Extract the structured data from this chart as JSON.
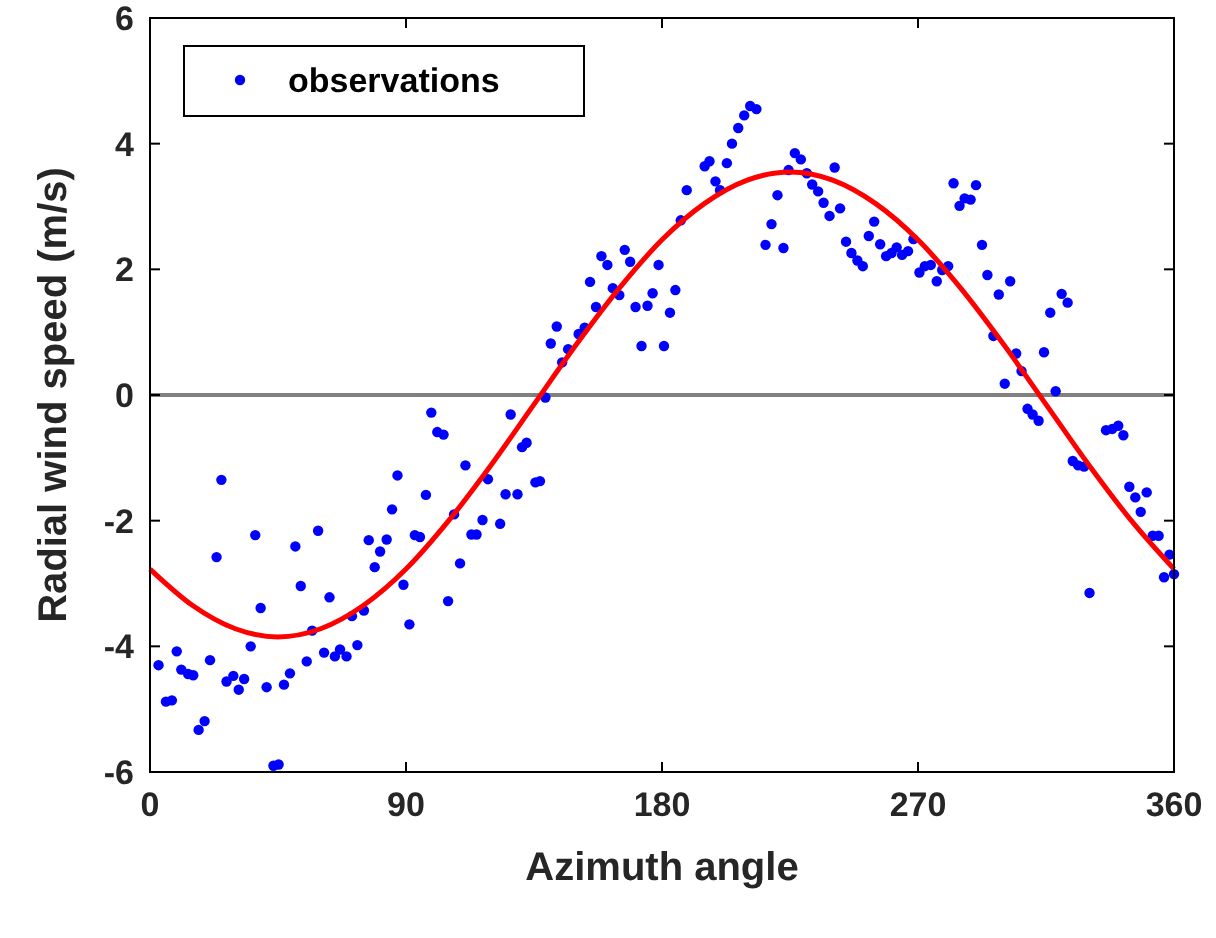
{
  "chart_data": {
    "type": "scatter",
    "xlabel": "Azimuth angle",
    "ylabel": "Radial wind speed (m/s)",
    "xlim": [
      0,
      360
    ],
    "xticks": [
      0,
      90,
      180,
      270,
      360
    ],
    "ylim": [
      -6,
      6
    ],
    "yticks": [
      -6,
      -4,
      -2,
      0,
      2,
      4,
      6
    ],
    "legend": "top left",
    "grid": false,
    "ref_lines": [
      {
        "axis": "y",
        "value": 0,
        "color": "#808080"
      }
    ],
    "series": [
      {
        "name": "observations",
        "marker": "circle",
        "color": "#0000ff",
        "x": [
          3,
          5.6,
          7.7,
          9.4,
          11,
          13.4,
          15.2,
          17.1,
          19.2,
          21.1,
          23.4,
          25.1,
          26.9,
          29.3,
          31.2,
          33.1,
          35.4,
          37,
          38.9,
          41,
          43.4,
          45.2,
          47.1,
          49.2,
          51.1,
          53,
          55.1,
          57,
          59.1,
          61.2,
          63.1,
          65,
          66.8,
          69.1,
          71,
          72.9,
          75.2,
          76.9,
          79,
          80.9,
          83.2,
          85.1,
          87,
          89.1,
          91.2,
          93.1,
          94.9,
          97,
          98.9,
          101,
          103.2,
          104.8,
          106.9,
          109,
          110.9,
          113,
          114.8,
          116.9,
          118.8,
          123.1,
          125,
          126.8,
          129.2,
          130.8,
          132.4,
          135.5,
          137.1,
          139,
          140.9,
          143,
          144.9,
          147,
          150.7,
          152.8,
          154.7,
          156.8,
          158.7,
          160.8,
          162.7,
          165,
          166.9,
          168.8,
          170.7,
          172.8,
          174.9,
          176.7,
          178.8,
          180.7,
          182.8,
          184.7,
          186.6,
          188.7,
          195,
          196.7,
          198.8,
          200.4,
          202.8,
          204.6,
          206.8,
          208.9,
          211,
          213.2,
          216.4,
          218.5,
          220.6,
          222.7,
          224.5,
          226.7,
          228.8,
          230.9,
          232.8,
          234.9,
          236.8,
          238.9,
          240.7,
          242.6,
          244.7,
          246.6,
          248.7,
          250.6,
          252.7,
          254.6,
          256.7,
          258.8,
          260.7,
          262.5,
          264.4,
          266.5,
          268.4,
          270.5,
          272.4,
          274.5,
          276.6,
          278.5,
          280.6,
          282.5,
          284.6,
          286.4,
          288.5,
          290.4,
          292.5,
          294.4,
          296.5,
          298.4,
          300.5,
          302.4,
          304.5,
          306.4,
          308.5,
          310.3,
          312.4,
          314.3,
          316.5,
          318.4,
          320.5,
          322.6,
          324.4,
          326.3,
          328.4,
          330.3,
          336.1,
          338.3,
          340.4,
          342.2,
          344.3,
          346.4,
          348.3,
          350.4,
          352.5,
          354.6,
          356.5,
          358.4,
          360
        ],
        "values": [
          -4.3,
          -4.88,
          -4.86,
          -4.08,
          -4.37,
          -4.44,
          -4.46,
          -5.33,
          -5.19,
          -4.22,
          -2.58,
          -1.35,
          -4.56,
          -4.47,
          -4.69,
          -4.52,
          -4,
          -2.23,
          -3.39,
          -4.65,
          -5.9,
          -5.88,
          -4.61,
          -4.43,
          -2.41,
          -3.04,
          -4.24,
          -3.75,
          -2.16,
          -4.1,
          -3.22,
          -4.16,
          -4.05,
          -4.16,
          -3.52,
          -3.98,
          -3.43,
          -2.31,
          -2.74,
          -2.49,
          -2.3,
          -1.82,
          -1.28,
          -3.02,
          -3.65,
          -2.23,
          -2.26,
          -1.59,
          -0.28,
          -0.59,
          -0.63,
          -3.28,
          -1.9,
          -2.68,
          -1.12,
          -2.22,
          -2.22,
          -1.99,
          -1.34,
          -2.05,
          -1.58,
          -0.31,
          -1.58,
          -0.83,
          -0.76,
          -1.39,
          -1.37,
          -0.04,
          0.82,
          1.09,
          0.52,
          0.73,
          0.97,
          1.07,
          1.8,
          1.4,
          2.21,
          2.07,
          1.7,
          1.59,
          2.31,
          2.12,
          1.4,
          0.78,
          1.42,
          1.62,
          2.07,
          0.78,
          1.31,
          1.67,
          2.78,
          3.26,
          3.64,
          3.72,
          3.4,
          3.26,
          3.69,
          4.0,
          4.25,
          4.45,
          4.6,
          4.55,
          2.39,
          2.72,
          3.18,
          2.34,
          3.58,
          3.85,
          3.75,
          3.53,
          3.35,
          3.24,
          3.06,
          2.85,
          3.62,
          2.97,
          2.44,
          2.26,
          2.14,
          2.05,
          2.53,
          2.76,
          2.4,
          2.21,
          2.26,
          2.35,
          2.23,
          2.29,
          2.48,
          1.95,
          2.05,
          2.07,
          1.81,
          1.99,
          2.05,
          3.37,
          3.01,
          3.13,
          3.11,
          3.34,
          2.39,
          1.91,
          0.94,
          1.6,
          0.18,
          1.81,
          0.66,
          0.38,
          -0.22,
          -0.31,
          -0.41,
          0.68,
          1.31,
          0.06,
          1.61,
          1.47,
          -1.05,
          -1.12,
          -1.14,
          -3.15,
          -0.56,
          -0.54,
          -0.49,
          -0.64,
          -1.46,
          -1.63,
          -1.86,
          -1.55,
          -2.24,
          -2.24,
          -2.9,
          -2.54,
          -2.85
        ]
      },
      {
        "type": "line",
        "color": "#ff0000",
        "x": [
          0,
          15,
          30,
          45,
          60,
          75,
          90,
          105,
          120,
          135,
          150,
          165,
          180,
          195,
          210,
          225,
          240,
          255,
          270,
          285,
          300,
          315,
          330,
          345,
          360
        ],
        "values": [
          -2.77,
          -3.35,
          -3.72,
          -3.85,
          -3.72,
          -3.35,
          -2.77,
          -2,
          -1.11,
          -0.15,
          0.81,
          1.7,
          2.47,
          3.05,
          3.42,
          3.55,
          3.42,
          3.05,
          2.47,
          1.7,
          0.81,
          -0.15,
          -1.11,
          -2,
          -2.77
        ],
        "line_style": "solid",
        "marker": "none"
      }
    ]
  }
}
